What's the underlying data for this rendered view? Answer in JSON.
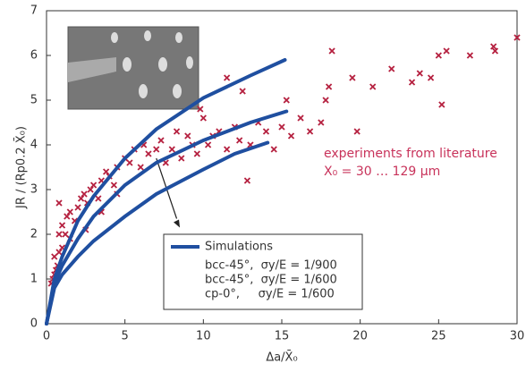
{
  "chart_data": {
    "type": "line",
    "x_label": "Δa/X̄₀",
    "y_label": "JR / (Rp0.2 X̄₀)",
    "annotations": [
      "experiments from literature",
      "X₀ = 30 … 129 µm"
    ],
    "legend_title": "Simulations",
    "legend": "lower right",
    "xlim": [
      0,
      30
    ],
    "ylim": [
      0,
      7
    ],
    "xticks": [
      0,
      5,
      10,
      15,
      20,
      25,
      30
    ],
    "yticks": [
      0,
      1,
      2,
      3,
      4,
      5,
      6,
      7
    ],
    "scatter": {
      "color": "#b5203f",
      "x": [
        0.3,
        0.4,
        0.5,
        0.6,
        0.7,
        0.5,
        0.8,
        1,
        0.8,
        1.2,
        1,
        1.3,
        0.8,
        1.5,
        1.8,
        2,
        2.2,
        2.4,
        2.6,
        2.8,
        3,
        3.3,
        3.5,
        3.8,
        4,
        4.3,
        4.5,
        5,
        5.3,
        5.6,
        6,
        6.2,
        6.5,
        7,
        7.3,
        7.6,
        8,
        8.3,
        8.6,
        9,
        9.3,
        9.6,
        10,
        10.3,
        10.6,
        11,
        11.5,
        12,
        12.3,
        12.8,
        13,
        13.5,
        14,
        14.5,
        15,
        15.3,
        15.6,
        16.2,
        16.8,
        17.5,
        18,
        17.8,
        18.2,
        19.5,
        19.8,
        20.8,
        22,
        23.3,
        23.8,
        24.5,
        25,
        25.2,
        25.5,
        27,
        28.5,
        28.6,
        30,
        11.5,
        12.5,
        1.5,
        2.5,
        3.5,
        4.5,
        9.8
      ],
      "y": [
        0.9,
        1.0,
        1.1,
        1.2,
        1.3,
        1.5,
        1.6,
        1.7,
        2.0,
        2.0,
        2.2,
        2.4,
        2.7,
        2.5,
        2.3,
        2.6,
        2.8,
        2.9,
        2.7,
        3.0,
        3.1,
        2.8,
        3.2,
        3.4,
        3.3,
        3.1,
        3.5,
        3.7,
        3.6,
        3.9,
        3.5,
        4.0,
        3.8,
        3.9,
        4.1,
        3.6,
        3.9,
        4.3,
        3.7,
        4.2,
        4.0,
        3.8,
        4.6,
        4.0,
        4.2,
        4.3,
        3.9,
        4.4,
        4.1,
        3.2,
        4.0,
        4.5,
        4.3,
        3.9,
        4.4,
        5.0,
        4.2,
        4.6,
        4.3,
        4.5,
        5.3,
        5.0,
        6.1,
        5.5,
        4.3,
        5.3,
        5.7,
        5.4,
        5.6,
        5.5,
        6.0,
        4.9,
        6.1,
        6.0,
        6.2,
        6.1,
        6.4,
        5.5,
        5.2,
        1.9,
        2.1,
        2.5,
        2.9,
        4.8
      ]
    },
    "series": [
      {
        "name": "bcc-45°,  σy/E = 1/900",
        "color": "#1f4fa0",
        "x": [
          0,
          0.5,
          1,
          2,
          3,
          5,
          7,
          10,
          13,
          15.2
        ],
        "values": [
          0,
          1.0,
          1.5,
          2.3,
          2.85,
          3.7,
          4.35,
          5.05,
          5.55,
          5.9
        ]
      },
      {
        "name": "bcc-45°,  σy/E = 1/600",
        "color": "#1f4fa0",
        "x": [
          0,
          0.5,
          1,
          2,
          3,
          5,
          7,
          10,
          13,
          15.3
        ],
        "values": [
          0,
          0.9,
          1.3,
          1.9,
          2.4,
          3.1,
          3.6,
          4.1,
          4.5,
          4.75
        ]
      },
      {
        "name": "cp-0°,     σy/E = 1/600",
        "color": "#1f4fa0",
        "x": [
          0,
          0.5,
          1,
          2,
          3,
          5,
          7,
          10,
          12,
          14.1
        ],
        "values": [
          0,
          0.8,
          1.1,
          1.5,
          1.85,
          2.4,
          2.9,
          3.45,
          3.8,
          4.05
        ]
      }
    ]
  }
}
